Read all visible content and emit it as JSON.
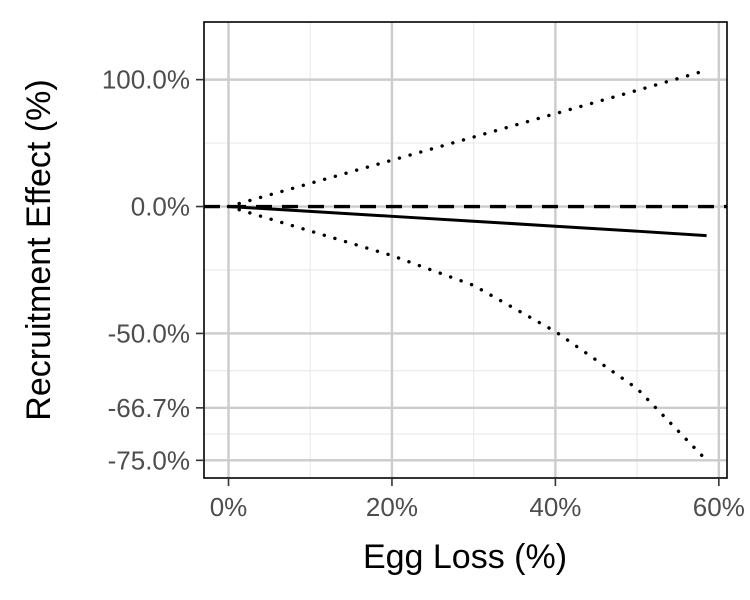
{
  "chart_data": {
    "type": "line",
    "title": "",
    "xlabel": "Egg Loss (%)",
    "ylabel": "Recruitment Effect (%)",
    "x_scale": "linear",
    "y_scale": "log-ratio (log of 1 + effect)",
    "xlim": [
      -3,
      61
    ],
    "ylim": [
      -77.3,
      174
    ],
    "x_ticks": [
      0,
      20,
      40,
      60
    ],
    "x_tick_labels": [
      "0%",
      "20%",
      "40%",
      "60%"
    ],
    "y_ticks": [
      100,
      0,
      -50,
      -66.7,
      -75
    ],
    "y_tick_labels": [
      "100.0%",
      "0.0%",
      "-50.0%",
      "-66.7%",
      "-75.0%"
    ],
    "grid": true,
    "legend": "none",
    "reference_line": {
      "y": 0,
      "style": "dashed"
    },
    "series": [
      {
        "style": "solid",
        "x": [
          0,
          10,
          20,
          30,
          40,
          50,
          58.5
        ],
        "y": [
          0,
          -2.6,
          -5.2,
          -7.7,
          -10.2,
          -12.6,
          -14.7
        ]
      },
      {
        "style": "dotted",
        "x": [
          0,
          10,
          20,
          30,
          40,
          50,
          58.5
        ],
        "y": [
          0,
          13.5,
          28.8,
          46.2,
          66.1,
          88.6,
          110.5
        ]
      },
      {
        "style": "dotted",
        "x": [
          0,
          10,
          20,
          30,
          40,
          50,
          58.5
        ],
        "y": [
          0,
          -12.5,
          -23.5,
          -35.0,
          -49.5,
          -63.0,
          -75.0
        ]
      }
    ]
  },
  "colors": {
    "panel_border": "#000000",
    "grid_major": "#cccccc",
    "grid_minor": "#ebebeb",
    "line": "#000000",
    "tick_text": "#4d4d4d"
  }
}
